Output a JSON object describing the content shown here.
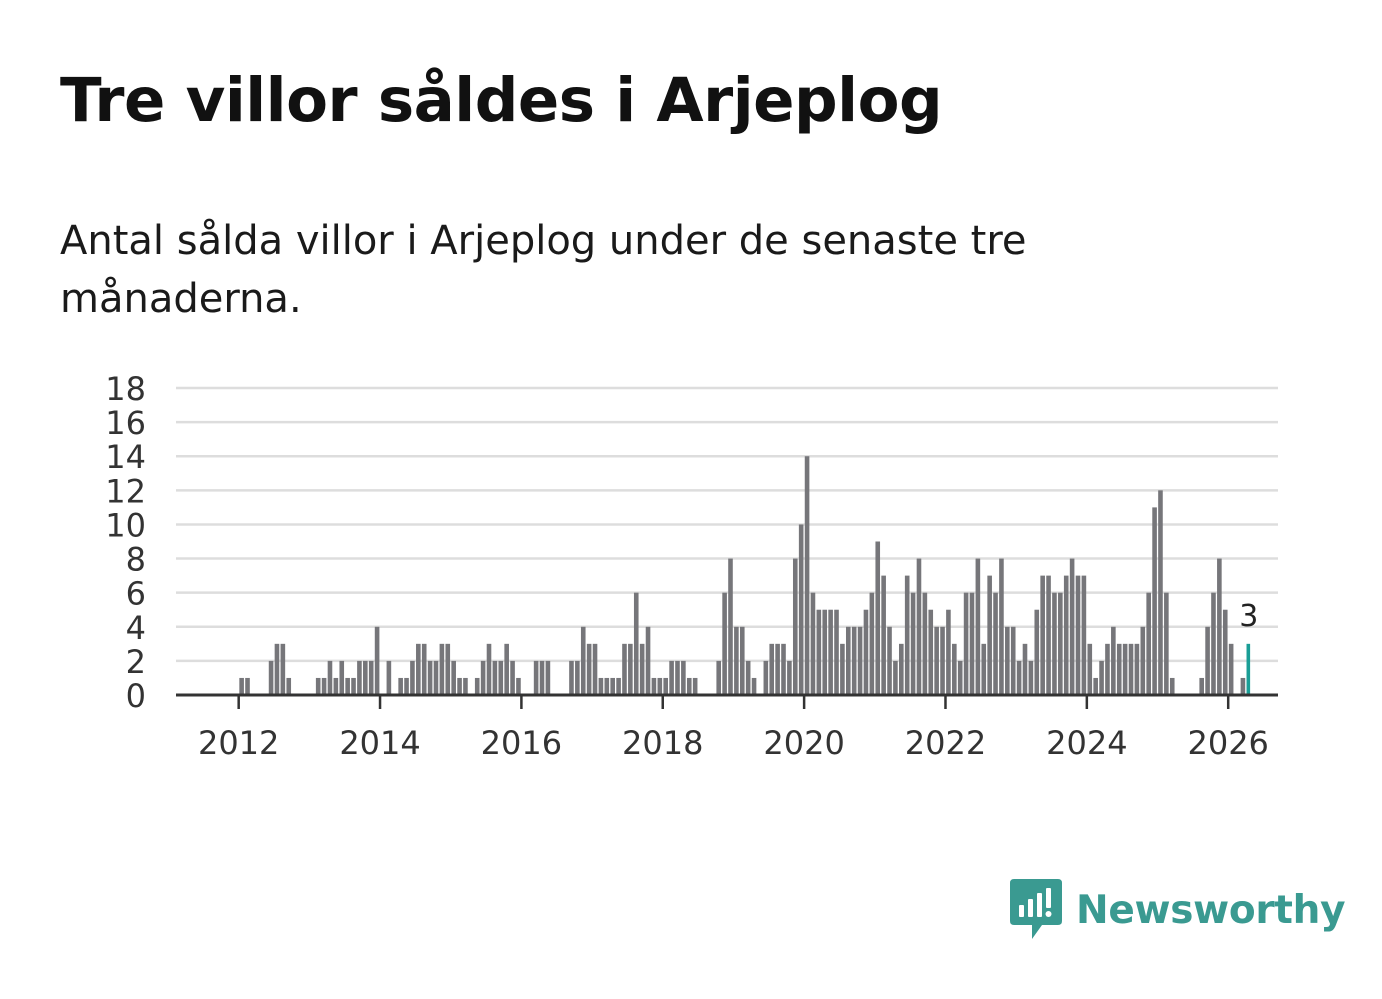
{
  "header": {
    "title": "Tre villor såldes i Arjeplog",
    "subtitle": "Antal sålda villor i Arjeplog under de senaste tre månaderna."
  },
  "brand": {
    "name": "Newsworthy",
    "color": "#3a9a91",
    "icon": "newsworthy-logo-icon"
  },
  "chart_data": {
    "type": "bar",
    "start_month": "2011-01",
    "y_ticks": [
      0,
      2,
      4,
      6,
      8,
      10,
      12,
      14,
      16,
      18
    ],
    "ylim": [
      0,
      18
    ],
    "x_ticks": [
      "2012",
      "2014",
      "2016",
      "2018",
      "2020",
      "2022",
      "2024",
      "2026"
    ],
    "grid": true,
    "bar_color": "#76767a",
    "highlight_color": "#1a9e96",
    "highlight_label": "3",
    "values": [
      0,
      0,
      0,
      0,
      0,
      0,
      0,
      0,
      0,
      0,
      0,
      0,
      1,
      1,
      0,
      0,
      0,
      2,
      3,
      3,
      1,
      0,
      0,
      0,
      0,
      1,
      1,
      2,
      1,
      2,
      1,
      1,
      2,
      2,
      2,
      4,
      0,
      2,
      0,
      1,
      1,
      2,
      3,
      3,
      2,
      2,
      3,
      3,
      2,
      1,
      1,
      0,
      1,
      2,
      3,
      2,
      2,
      3,
      2,
      1,
      0,
      0,
      2,
      2,
      2,
      0,
      0,
      0,
      2,
      2,
      4,
      3,
      3,
      1,
      1,
      1,
      1,
      3,
      3,
      6,
      3,
      4,
      1,
      1,
      1,
      2,
      2,
      2,
      1,
      1,
      0,
      0,
      0,
      2,
      6,
      8,
      4,
      4,
      2,
      1,
      0,
      2,
      3,
      3,
      3,
      2,
      8,
      10,
      14,
      6,
      5,
      5,
      5,
      5,
      3,
      4,
      4,
      4,
      5,
      6,
      9,
      7,
      4,
      2,
      3,
      7,
      6,
      8,
      6,
      5,
      4,
      4,
      5,
      3,
      2,
      6,
      6,
      8,
      3,
      7,
      6,
      8,
      4,
      4,
      2,
      3,
      2,
      5,
      7,
      7,
      6,
      6,
      7,
      8,
      7,
      7,
      3,
      1,
      2,
      3,
      4,
      3,
      3,
      3,
      3,
      4,
      6,
      11,
      12,
      6,
      1,
      0,
      0,
      0,
      0,
      1,
      4,
      6,
      8,
      5,
      3,
      0,
      1,
      3
    ]
  }
}
